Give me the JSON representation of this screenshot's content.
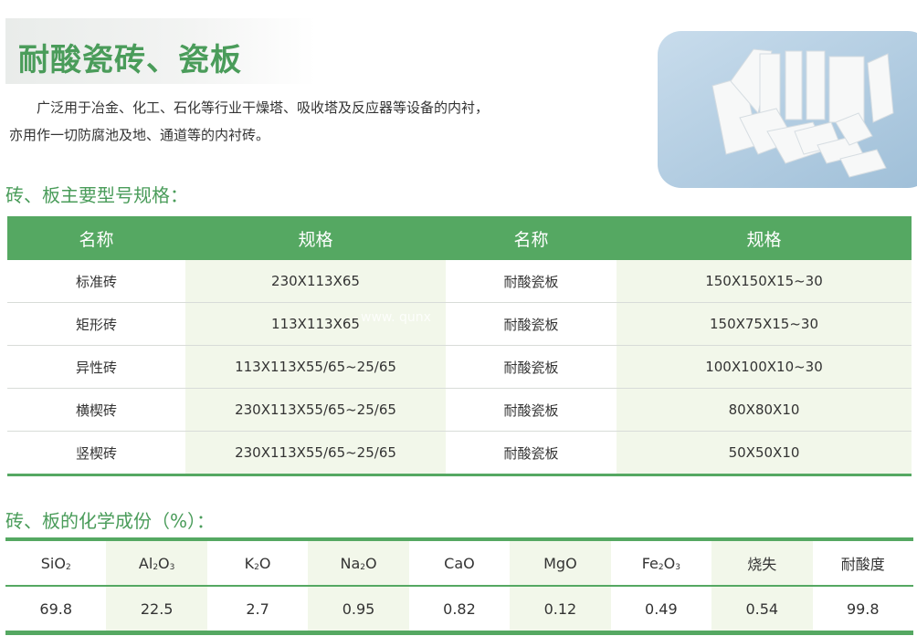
{
  "title": "耐酸瓷砖、瓷板",
  "intro": {
    "line1": "广泛用于冶金、化工、石化等行业干燥塔、吸收塔及反应器等设备的内衬，",
    "line2": "亦用作一切防腐池及地、通道等的内衬砖。"
  },
  "spec_section": {
    "heading": "砖、板主要型号规格：",
    "headers": [
      "名称",
      "规格",
      "名称",
      "规格"
    ],
    "rows": [
      [
        "标准砖",
        "230X113X65",
        "耐酸瓷板",
        "150X150X15~30"
      ],
      [
        "矩形砖",
        "113X113X65",
        "耐酸瓷板",
        "150X75X15~30"
      ],
      [
        "异性砖",
        "113X113X55/65~25/65",
        "耐酸瓷板",
        "100X100X10~30"
      ],
      [
        "横楔砖",
        "230X113X55/65~25/65",
        "耐酸瓷板",
        "80X80X10"
      ],
      [
        "竖楔砖",
        "230X113X55/65~25/65",
        "耐酸瓷板",
        "50X50X10"
      ]
    ]
  },
  "watermark": "www. qunx",
  "chem_section": {
    "heading": "砖、板的化学成份（%）：",
    "headers": [
      [
        "Si",
        "O",
        "2"
      ],
      [
        "Al",
        "2",
        "O",
        "3"
      ],
      [
        "K",
        "2",
        "O"
      ],
      [
        "Na",
        "2",
        "O"
      ],
      [
        "CaO"
      ],
      [
        "MgO"
      ],
      [
        "Fe",
        "2",
        "O",
        "3"
      ],
      [
        "烧失"
      ],
      [
        "耐酸度"
      ]
    ],
    "values": [
      "69.8",
      "22.5",
      "2.7",
      "0.95",
      "0.82",
      "0.12",
      "0.49",
      "0.54",
      "99.8"
    ]
  },
  "colors": {
    "accent": "#55a862",
    "title": "#4a9c5a",
    "shade": "#f2f7ea"
  }
}
